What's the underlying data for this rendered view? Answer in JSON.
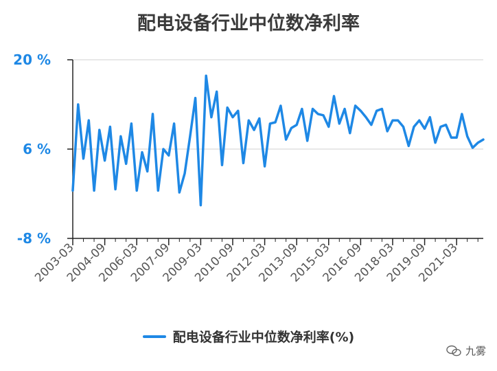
{
  "header": {
    "title": "配电设备行业中位数净利率"
  },
  "legend": {
    "label": "配电设备行业中位数净利率(%)"
  },
  "watermark": {
    "text": "九雾"
  },
  "colors": {
    "line": "#1e88e5",
    "tick_label": "#1e88e5",
    "grid": "#e0e0e0",
    "axis": "#222222",
    "xlabel": "#555555"
  },
  "chart_data": {
    "type": "line",
    "title": "配电设备行业中位数净利率",
    "xlabel": "",
    "ylabel": "",
    "ylim": [
      -8,
      20
    ],
    "yticks": [
      -8,
      6,
      20
    ],
    "ytick_labels": [
      "-8 %",
      "6 %",
      "20 %"
    ],
    "xtick_labels": [
      "2003-03",
      "2004-09",
      "2006-03",
      "2007-09",
      "2009-03",
      "2010-09",
      "2012-03",
      "2013-09",
      "2015-03",
      "2016-09",
      "2018-03",
      "2019-09",
      "2021-03"
    ],
    "grid": "horizontal",
    "legend_position": "bottom",
    "series": [
      {
        "name": "配电设备行业中位数净利率(%)",
        "values": [
          -0.5,
          13.0,
          4.5,
          10.5,
          -0.5,
          9.0,
          4.2,
          9.5,
          -0.3,
          8.0,
          3.7,
          10.0,
          -0.5,
          5.5,
          2.5,
          11.5,
          -0.5,
          6.0,
          5.0,
          10.0,
          -0.8,
          2.2,
          8.0,
          14.0,
          -2.8,
          17.5,
          11.0,
          15.0,
          3.5,
          12.5,
          11.0,
          12.0,
          3.8,
          10.5,
          9.0,
          10.8,
          3.3,
          10.0,
          10.2,
          12.8,
          7.5,
          9.3,
          9.8,
          12.3,
          7.3,
          12.3,
          11.5,
          11.3,
          9.5,
          14.3,
          10.0,
          12.3,
          8.5,
          12.8,
          12.0,
          11.0,
          9.8,
          12.0,
          12.3,
          8.8,
          10.5,
          10.5,
          9.5,
          6.5,
          9.5,
          10.5,
          9.2,
          11.0,
          7.0,
          9.5,
          9.8,
          7.8,
          7.8,
          11.5,
          8.0,
          6.2,
          7.0,
          7.5
        ]
      }
    ]
  }
}
